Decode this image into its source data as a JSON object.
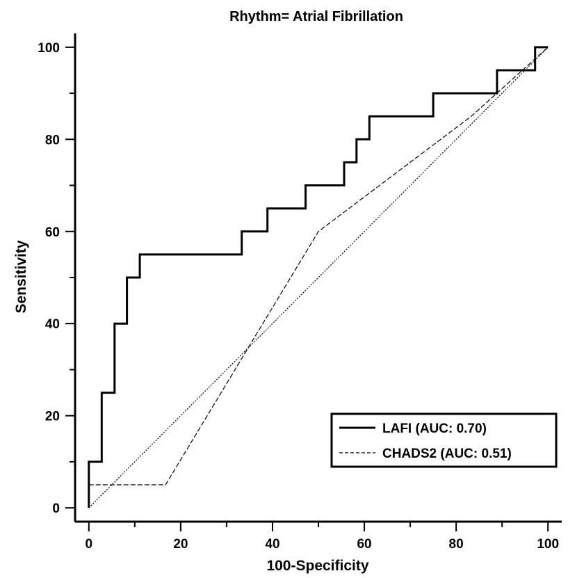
{
  "chart_data": {
    "type": "line",
    "title": "Rhythm= Atrial Fibrillation",
    "xlabel": "100-Specificity",
    "ylabel": "Sensitivity",
    "xlim": [
      -3,
      103
    ],
    "ylim": [
      -3,
      103
    ],
    "x_ticks": [
      "0",
      "20",
      "40",
      "60",
      "80",
      "100"
    ],
    "y_ticks": [
      "0",
      "20",
      "40",
      "60",
      "80",
      "100"
    ],
    "grid": false,
    "legend_position": "bottom-right",
    "series": [
      {
        "name": "LAFI (AUC: 0.70)",
        "style": "solid-thick",
        "color": "#000000",
        "points": [
          [
            0,
            0
          ],
          [
            0,
            10
          ],
          [
            2.8,
            10
          ],
          [
            2.8,
            25
          ],
          [
            5.6,
            25
          ],
          [
            5.6,
            40
          ],
          [
            8.3,
            40
          ],
          [
            8.3,
            50
          ],
          [
            11.1,
            50
          ],
          [
            11.1,
            55
          ],
          [
            33.3,
            55
          ],
          [
            33.3,
            60
          ],
          [
            38.9,
            60
          ],
          [
            38.9,
            65
          ],
          [
            47.2,
            65
          ],
          [
            47.2,
            70
          ],
          [
            55.6,
            70
          ],
          [
            55.6,
            75
          ],
          [
            58.3,
            75
          ],
          [
            58.3,
            80
          ],
          [
            61.1,
            80
          ],
          [
            61.1,
            85
          ],
          [
            75,
            85
          ],
          [
            75,
            90
          ],
          [
            88.9,
            90
          ],
          [
            88.9,
            95
          ],
          [
            97.2,
            95
          ],
          [
            97.2,
            100
          ],
          [
            100,
            100
          ]
        ]
      },
      {
        "name": "CHADS2 (AUC: 0.51)",
        "style": "dashed",
        "color": "#000000",
        "points": [
          [
            0,
            5
          ],
          [
            16.7,
            5
          ],
          [
            50,
            60
          ],
          [
            83.3,
            85
          ],
          [
            100,
            100
          ]
        ]
      },
      {
        "name": "",
        "style": "dotted",
        "color": "#000000",
        "points": [
          [
            0,
            0
          ],
          [
            100,
            100
          ]
        ]
      }
    ]
  }
}
